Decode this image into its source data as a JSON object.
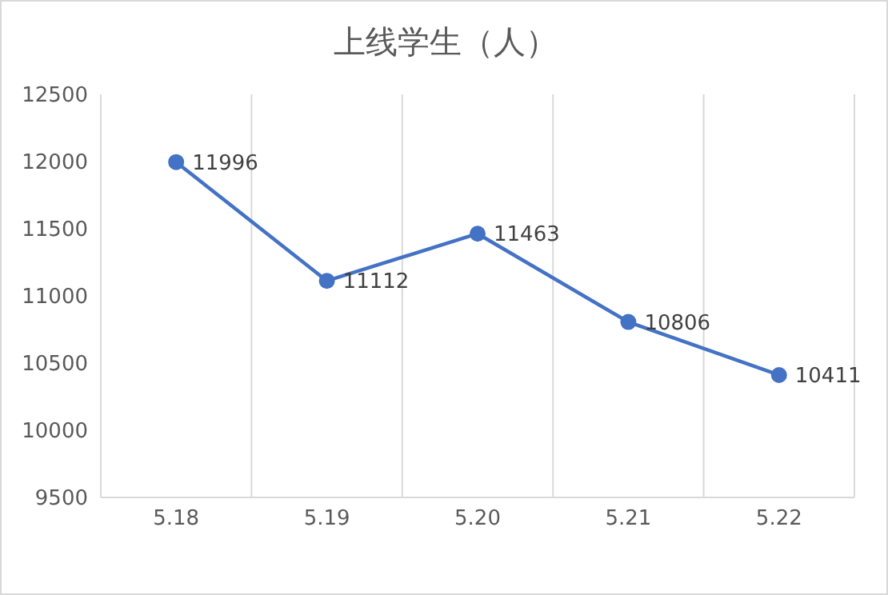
{
  "chart_data": {
    "type": "line",
    "title": "上线学生（人）",
    "categories": [
      "5.18",
      "5.19",
      "5.20",
      "5.21",
      "5.22"
    ],
    "series": [
      {
        "color": "#4472c4",
        "values": [
          11996,
          11112,
          11463,
          10806,
          10411
        ]
      }
    ],
    "ylim": [
      9500,
      12500
    ],
    "yticks": [
      9500,
      10000,
      10500,
      11000,
      11500,
      12000,
      12500
    ],
    "grid": "x",
    "marker": "circle",
    "data_labels": true
  }
}
